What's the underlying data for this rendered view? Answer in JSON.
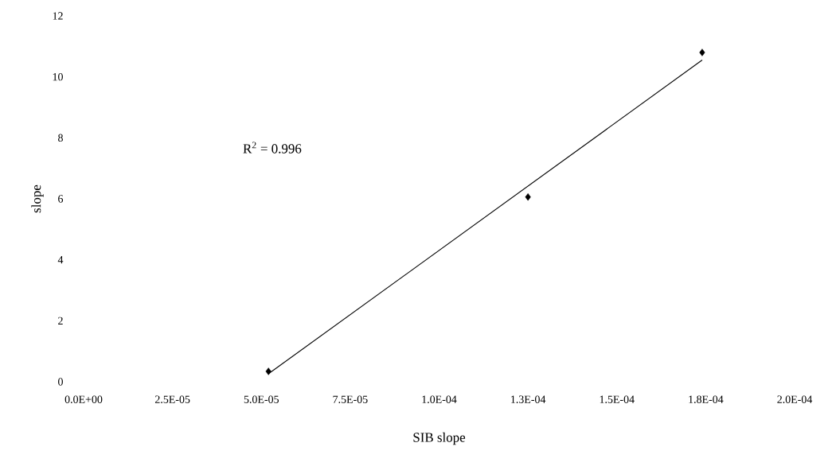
{
  "chart_data": {
    "type": "scatter",
    "xlabel": "SIB slope",
    "ylabel": "slope",
    "xlim": [
      0,
      0.0002
    ],
    "ylim": [
      0,
      12
    ],
    "xticks": [
      {
        "value": 0,
        "label": "0.0E+00"
      },
      {
        "value": 2.5e-05,
        "label": "2.5E-05"
      },
      {
        "value": 5e-05,
        "label": "5.0E-05"
      },
      {
        "value": 7.5e-05,
        "label": "7.5E-05"
      },
      {
        "value": 0.0001,
        "label": "1.0E-04"
      },
      {
        "value": 0.000125,
        "label": "1.3E-04"
      },
      {
        "value": 0.00015,
        "label": "1.5E-04"
      },
      {
        "value": 0.000175,
        "label": "1.8E-04"
      },
      {
        "value": 0.0002,
        "label": "2.0E-04"
      }
    ],
    "yticks": [
      0,
      2,
      4,
      6,
      8,
      10,
      12
    ],
    "series": [
      {
        "color": "#000000",
        "marker": "diamond",
        "x": [
          5.2e-05,
          0.000125,
          0.000174
        ],
        "values": [
          0.34,
          6.06,
          10.8
        ]
      },
      {
        "type": "line",
        "color": "#000000",
        "marker": "none",
        "line_style": "solid",
        "x": [
          5.2e-05,
          0.000174
        ],
        "values": [
          0.26,
          10.55
        ]
      }
    ],
    "annotations": [
      "R$^{2}$ = 0.996"
    ]
  }
}
